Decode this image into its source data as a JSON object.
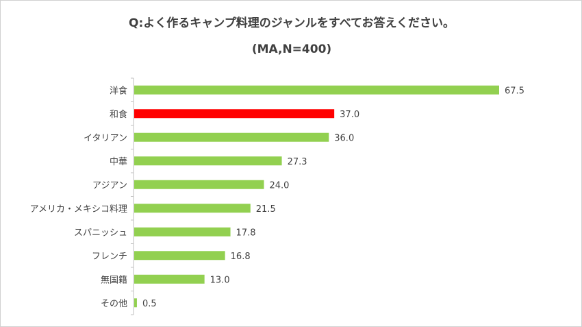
{
  "chart_data": {
    "type": "bar",
    "orientation": "horizontal",
    "title": "Q:よく作るキャンプ料理のジャンルをすべてお答えください。",
    "subtitle": "(MA,N=400)",
    "categories": [
      "洋食",
      "和食",
      "イタリアン",
      "中華",
      "アジアン",
      "アメリカ・メキシコ料理",
      "スパニッシュ",
      "フレンチ",
      "無国籍",
      "その他"
    ],
    "values": [
      67.5,
      37.0,
      36.0,
      27.3,
      24.0,
      21.5,
      17.8,
      16.8,
      13.0,
      0.5
    ],
    "value_labels": [
      "67.5",
      "37.0",
      "36.0",
      "27.3",
      "24.0",
      "21.5",
      "17.8",
      "16.8",
      "13.0",
      "0.5"
    ],
    "xlim": [
      0,
      70
    ],
    "grid": false,
    "legend": "none",
    "colors": {
      "default_bar": "#92d050",
      "highlight_bar": "#ff0000",
      "highlight_category": "和食",
      "axis": "#bfbfbf",
      "text": "#404040"
    }
  }
}
